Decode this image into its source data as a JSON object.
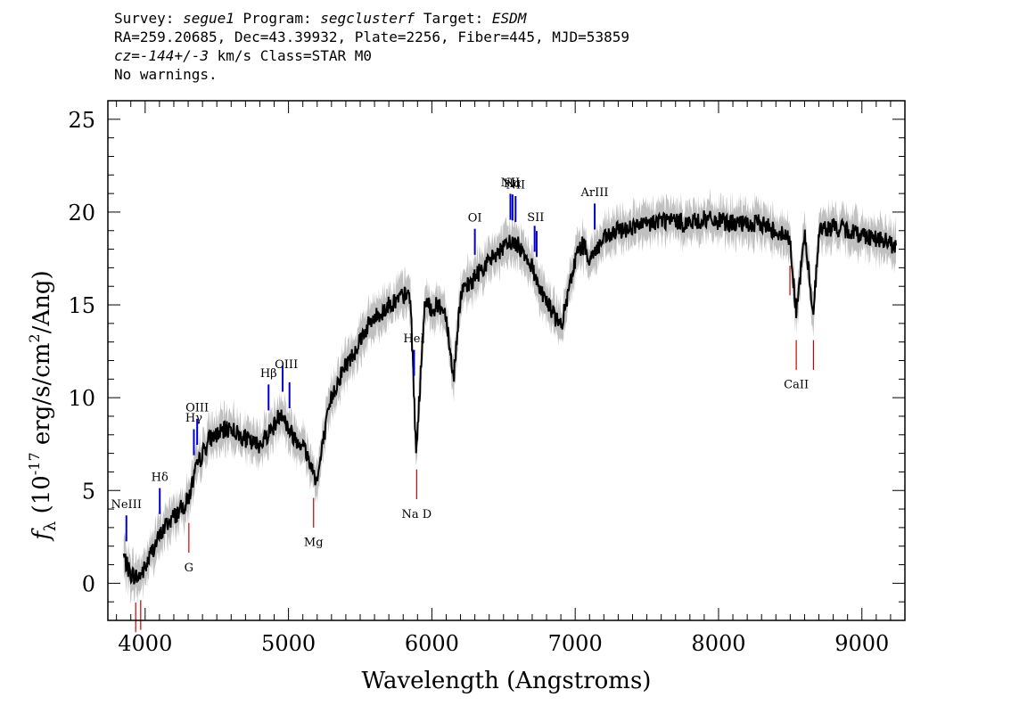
{
  "header": {
    "survey_label": "Survey:",
    "survey_value": "segue1",
    "program_label": "Program:",
    "program_value": "segclusterf",
    "target_label": "Target:",
    "target_value": "ESDM",
    "line2": "RA=259.20685, Dec=43.39932, Plate=2256, Fiber=445, MJD=53859",
    "cz_label": "cz",
    "cz_eq": "=",
    "cz_value": "-144+/-3",
    "cz_rest": " km/s Class=STAR M0",
    "line4": "No warnings."
  },
  "chart_data": {
    "type": "line",
    "xlabel": "Wavelength (Angstroms)",
    "ylabel": "f_λ (10^-17 erg/s/cm^2/Ang)",
    "xlim": [
      3740,
      9300
    ],
    "ylim": [
      -2,
      26
    ],
    "xticks": [
      4000,
      5000,
      6000,
      7000,
      8000,
      9000
    ],
    "yticks": [
      0,
      5,
      10,
      15,
      20,
      25
    ],
    "colors": {
      "flux": "#000000",
      "error_band": "#c0c0c0",
      "emission": "#0000cc",
      "absorption": "#cc0000"
    },
    "series": [
      {
        "x": [
          3850,
          3880,
          3900,
          3950,
          4000,
          4050,
          4100,
          4150,
          4200,
          4250,
          4300,
          4350,
          4400,
          4450,
          4500,
          4550,
          4600,
          4650,
          4700,
          4750,
          4800,
          4850,
          4900,
          4950,
          5000,
          5050,
          5100,
          5150,
          5200,
          5250,
          5300,
          5350,
          5400,
          5450,
          5500,
          5550,
          5600,
          5650,
          5700,
          5750,
          5800,
          5850,
          5890,
          5950,
          6000,
          6050,
          6100,
          6150,
          6200,
          6250,
          6300,
          6350,
          6400,
          6450,
          6500,
          6550,
          6600,
          6650,
          6700,
          6750,
          6800,
          6850,
          6900,
          6950,
          7000,
          7050,
          7100,
          7150,
          7200,
          7300,
          7400,
          7500,
          7600,
          7700,
          7800,
          7900,
          8000,
          8100,
          8200,
          8300,
          8400,
          8500,
          8542,
          8600,
          8662,
          8700,
          8800,
          8900,
          9000,
          9100,
          9200,
          9240
        ],
        "y": [
          1.5,
          0.8,
          0.5,
          0.3,
          0.8,
          1.8,
          2.5,
          3.2,
          3.6,
          4.0,
          4.5,
          6.0,
          7.0,
          7.8,
          8.0,
          8.2,
          8.4,
          8.0,
          7.8,
          7.5,
          7.5,
          8.0,
          8.5,
          9.3,
          8.3,
          7.8,
          7.5,
          6.5,
          5.5,
          8.0,
          10.0,
          11.0,
          11.8,
          12.3,
          13.2,
          13.8,
          14.3,
          14.6,
          15.0,
          15.2,
          15.5,
          15.5,
          7.0,
          15.0,
          14.8,
          15.0,
          14.5,
          11.0,
          15.5,
          16.0,
          16.5,
          17.0,
          17.3,
          17.8,
          18.0,
          18.4,
          18.2,
          17.8,
          17.0,
          16.0,
          15.2,
          14.5,
          13.8,
          15.5,
          17.5,
          18.3,
          17.5,
          18.0,
          18.5,
          19.0,
          19.2,
          19.3,
          19.6,
          19.5,
          19.4,
          19.6,
          19.5,
          19.4,
          19.3,
          19.4,
          19.0,
          18.5,
          14.5,
          18.8,
          14.5,
          19.0,
          19.2,
          19.0,
          18.8,
          18.6,
          18.3,
          18.0
        ]
      }
    ],
    "line_labels": [
      {
        "text": "NeIII",
        "wavelength": 3869,
        "kind": "emission"
      },
      {
        "text": "Hδ",
        "wavelength": 4102,
        "kind": "emission"
      },
      {
        "text": "Hγ",
        "wavelength": 4340,
        "kind": "emission"
      },
      {
        "text": "OIII",
        "wavelength": 4363,
        "kind": "emission"
      },
      {
        "text": "Hβ",
        "wavelength": 4861,
        "kind": "emission"
      },
      {
        "text": "OIII",
        "wavelength": 4985,
        "kind": "emission"
      },
      {
        "text": "HeI",
        "wavelength": 5876,
        "kind": "emission"
      },
      {
        "text": "OI",
        "wavelength": 6300,
        "kind": "emission"
      },
      {
        "text": "NII",
        "wavelength": 6548,
        "kind": "emission"
      },
      {
        "text": "Hα",
        "wavelength": 6563,
        "kind": "emission"
      },
      {
        "text": "SII",
        "wavelength": 6724,
        "kind": "emission"
      },
      {
        "text": "NII",
        "wavelength": 6584,
        "kind": "emission"
      },
      {
        "text": "ArIII",
        "wavelength": 7136,
        "kind": "emission"
      },
      {
        "text": "Mg",
        "wavelength": 5175,
        "kind": "absorption"
      },
      {
        "text": "Na D",
        "wavelength": 5894,
        "kind": "absorption"
      },
      {
        "text": "CaII",
        "wavelength": 8542,
        "kind": "absorption"
      },
      {
        "text": "G",
        "wavelength": 4305,
        "kind": "absorption"
      }
    ],
    "emission_lines": [
      3869,
      4102,
      4340,
      4363,
      4861,
      4959,
      5007,
      5876,
      6300,
      6548,
      6563,
      6584,
      6717,
      6731,
      7136
    ],
    "absorption_lines": [
      3934,
      3969,
      4305,
      5175,
      5894,
      8498,
      8542,
      8662
    ]
  }
}
